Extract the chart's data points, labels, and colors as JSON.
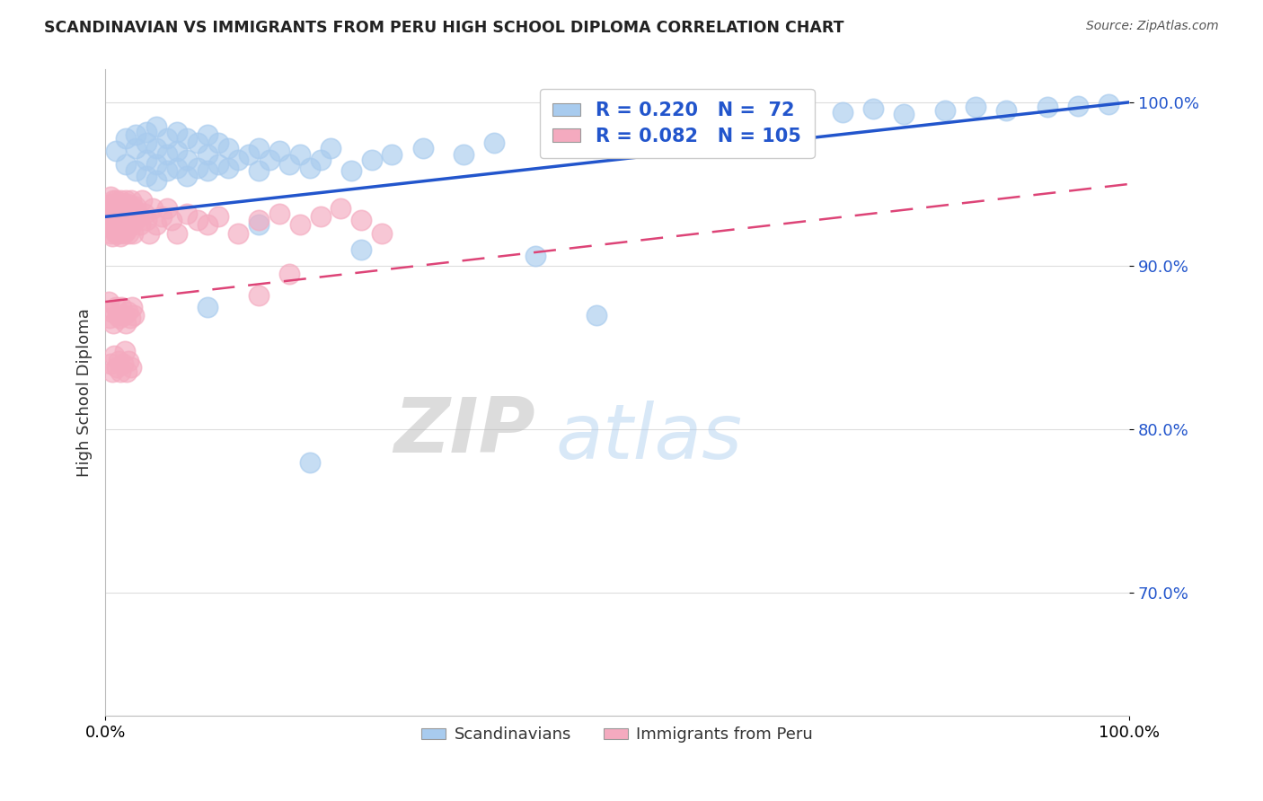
{
  "title": "SCANDINAVIAN VS IMMIGRANTS FROM PERU HIGH SCHOOL DIPLOMA CORRELATION CHART",
  "source_text": "Source: ZipAtlas.com",
  "ylabel": "High School Diploma",
  "xlabel": "",
  "xlim": [
    0,
    1
  ],
  "ylim": [
    0.625,
    1.02
  ],
  "yticks": [
    0.7,
    0.8,
    0.9,
    1.0
  ],
  "ytick_labels": [
    "70.0%",
    "80.0%",
    "90.0%",
    "100.0%"
  ],
  "xticks": [
    0.0,
    1.0
  ],
  "xtick_labels": [
    "0.0%",
    "100.0%"
  ],
  "blue_color": "#A8CBEE",
  "pink_color": "#F4AABF",
  "trend_blue": "#2255CC",
  "trend_pink": "#DD4477",
  "watermark_zip": "ZIP",
  "watermark_atlas": "atlas",
  "grid_color": "#DDDDDD",
  "blue_scatter_x": [
    0.01,
    0.02,
    0.02,
    0.03,
    0.03,
    0.03,
    0.04,
    0.04,
    0.04,
    0.04,
    0.05,
    0.05,
    0.05,
    0.05,
    0.06,
    0.06,
    0.06,
    0.07,
    0.07,
    0.07,
    0.08,
    0.08,
    0.08,
    0.09,
    0.09,
    0.1,
    0.1,
    0.1,
    0.11,
    0.11,
    0.12,
    0.12,
    0.13,
    0.14,
    0.15,
    0.15,
    0.16,
    0.17,
    0.18,
    0.19,
    0.2,
    0.21,
    0.22,
    0.24,
    0.26,
    0.28,
    0.31,
    0.35,
    0.38,
    0.45,
    0.5,
    0.52,
    0.55,
    0.58,
    0.62,
    0.65,
    0.68,
    0.72,
    0.75,
    0.78,
    0.82,
    0.85,
    0.88,
    0.92,
    0.95,
    0.98,
    0.42,
    0.48,
    0.2,
    0.25,
    0.15,
    0.1
  ],
  "blue_scatter_y": [
    0.97,
    0.962,
    0.978,
    0.958,
    0.972,
    0.98,
    0.955,
    0.965,
    0.975,
    0.982,
    0.952,
    0.962,
    0.972,
    0.985,
    0.958,
    0.968,
    0.978,
    0.96,
    0.97,
    0.982,
    0.955,
    0.965,
    0.978,
    0.96,
    0.975,
    0.958,
    0.968,
    0.98,
    0.962,
    0.975,
    0.96,
    0.972,
    0.965,
    0.968,
    0.958,
    0.972,
    0.965,
    0.97,
    0.962,
    0.968,
    0.96,
    0.965,
    0.972,
    0.958,
    0.965,
    0.968,
    0.972,
    0.968,
    0.975,
    0.978,
    0.982,
    0.985,
    0.988,
    0.99,
    0.992,
    0.988,
    0.992,
    0.994,
    0.996,
    0.993,
    0.995,
    0.997,
    0.995,
    0.997,
    0.998,
    0.999,
    0.906,
    0.87,
    0.78,
    0.91,
    0.925,
    0.875
  ],
  "pink_scatter_x": [
    0.003,
    0.004,
    0.005,
    0.005,
    0.006,
    0.006,
    0.007,
    0.007,
    0.008,
    0.008,
    0.009,
    0.009,
    0.01,
    0.01,
    0.01,
    0.011,
    0.011,
    0.012,
    0.012,
    0.013,
    0.013,
    0.014,
    0.014,
    0.015,
    0.015,
    0.015,
    0.016,
    0.016,
    0.017,
    0.017,
    0.018,
    0.018,
    0.019,
    0.019,
    0.02,
    0.02,
    0.021,
    0.021,
    0.022,
    0.022,
    0.023,
    0.023,
    0.024,
    0.025,
    0.025,
    0.026,
    0.027,
    0.028,
    0.029,
    0.03,
    0.032,
    0.034,
    0.036,
    0.038,
    0.04,
    0.043,
    0.046,
    0.05,
    0.055,
    0.06,
    0.065,
    0.07,
    0.08,
    0.09,
    0.1,
    0.11,
    0.13,
    0.15,
    0.17,
    0.19,
    0.21,
    0.23,
    0.25,
    0.27,
    0.15,
    0.18,
    0.003,
    0.004,
    0.006,
    0.008,
    0.01,
    0.012,
    0.014,
    0.016,
    0.018,
    0.02,
    0.022,
    0.024,
    0.026,
    0.028,
    0.005,
    0.007,
    0.009,
    0.011,
    0.013,
    0.015,
    0.017,
    0.019,
    0.021,
    0.023,
    0.025
  ],
  "pink_scatter_y": [
    0.935,
    0.928,
    0.942,
    0.92,
    0.938,
    0.925,
    0.932,
    0.918,
    0.94,
    0.928,
    0.935,
    0.922,
    0.94,
    0.93,
    0.92,
    0.935,
    0.925,
    0.938,
    0.928,
    0.932,
    0.92,
    0.936,
    0.925,
    0.94,
    0.93,
    0.918,
    0.935,
    0.925,
    0.938,
    0.928,
    0.932,
    0.92,
    0.936,
    0.925,
    0.94,
    0.93,
    0.935,
    0.922,
    0.938,
    0.928,
    0.932,
    0.92,
    0.936,
    0.94,
    0.925,
    0.932,
    0.92,
    0.935,
    0.928,
    0.936,
    0.93,
    0.925,
    0.94,
    0.932,
    0.928,
    0.92,
    0.935,
    0.925,
    0.93,
    0.935,
    0.928,
    0.92,
    0.932,
    0.928,
    0.925,
    0.93,
    0.92,
    0.928,
    0.932,
    0.925,
    0.93,
    0.935,
    0.928,
    0.92,
    0.882,
    0.895,
    0.878,
    0.868,
    0.872,
    0.865,
    0.875,
    0.87,
    0.868,
    0.875,
    0.87,
    0.865,
    0.872,
    0.868,
    0.875,
    0.87,
    0.84,
    0.835,
    0.845,
    0.838,
    0.842,
    0.835,
    0.84,
    0.848,
    0.835,
    0.842,
    0.838
  ]
}
